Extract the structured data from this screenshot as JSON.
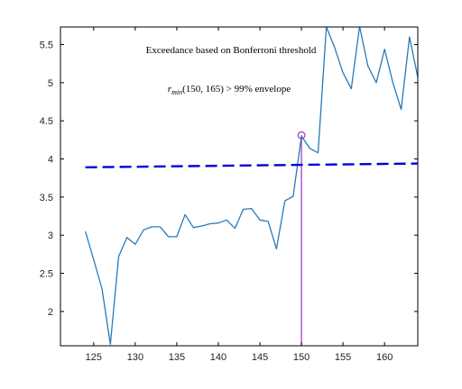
{
  "chart_data": {
    "type": "line",
    "title": "Exceedance based on Bonferroni threshold",
    "annotation": {
      "r": "r",
      "sub": "min",
      "rest": "(150, 165) > 99% envelope"
    },
    "xlabel": "",
    "ylabel": "",
    "xlim": [
      121,
      164
    ],
    "ylim": [
      1.55,
      5.73
    ],
    "x_ticks": [
      125,
      130,
      135,
      140,
      145,
      150,
      155,
      160
    ],
    "y_ticks": [
      2,
      2.5,
      3,
      3.5,
      4,
      4.5,
      5,
      5.5
    ],
    "grid": false,
    "series": [
      {
        "color": "#2a7ab8",
        "style": "solid",
        "x": [
          124,
          125,
          126,
          127,
          128,
          129,
          130,
          131,
          132,
          133,
          134,
          135,
          136,
          137,
          138,
          139,
          140,
          141,
          142,
          143,
          144,
          145,
          146,
          147,
          148,
          149,
          150,
          151,
          152,
          153,
          154,
          155,
          156,
          157,
          158,
          159,
          160,
          161,
          162,
          163,
          164
        ],
        "y": [
          3.05,
          2.68,
          2.3,
          1.57,
          2.72,
          2.97,
          2.88,
          3.07,
          3.11,
          3.11,
          2.98,
          2.98,
          3.27,
          3.1,
          3.12,
          3.15,
          3.16,
          3.2,
          3.09,
          3.34,
          3.35,
          3.2,
          3.18,
          2.82,
          3.45,
          3.51,
          4.3,
          4.14,
          4.08,
          5.73,
          5.46,
          5.13,
          4.92,
          5.74,
          5.22,
          5.0,
          5.44,
          5.0,
          4.65,
          5.6,
          5.07
        ]
      },
      {
        "color": "#0000dd",
        "style": "dashed",
        "x": [
          124,
          164
        ],
        "y": [
          3.89,
          3.94
        ]
      }
    ],
    "marker": {
      "x": 150,
      "y": 4.31,
      "color": "#a040d0"
    },
    "vline": {
      "x": 150,
      "color": "#a040d0"
    }
  }
}
